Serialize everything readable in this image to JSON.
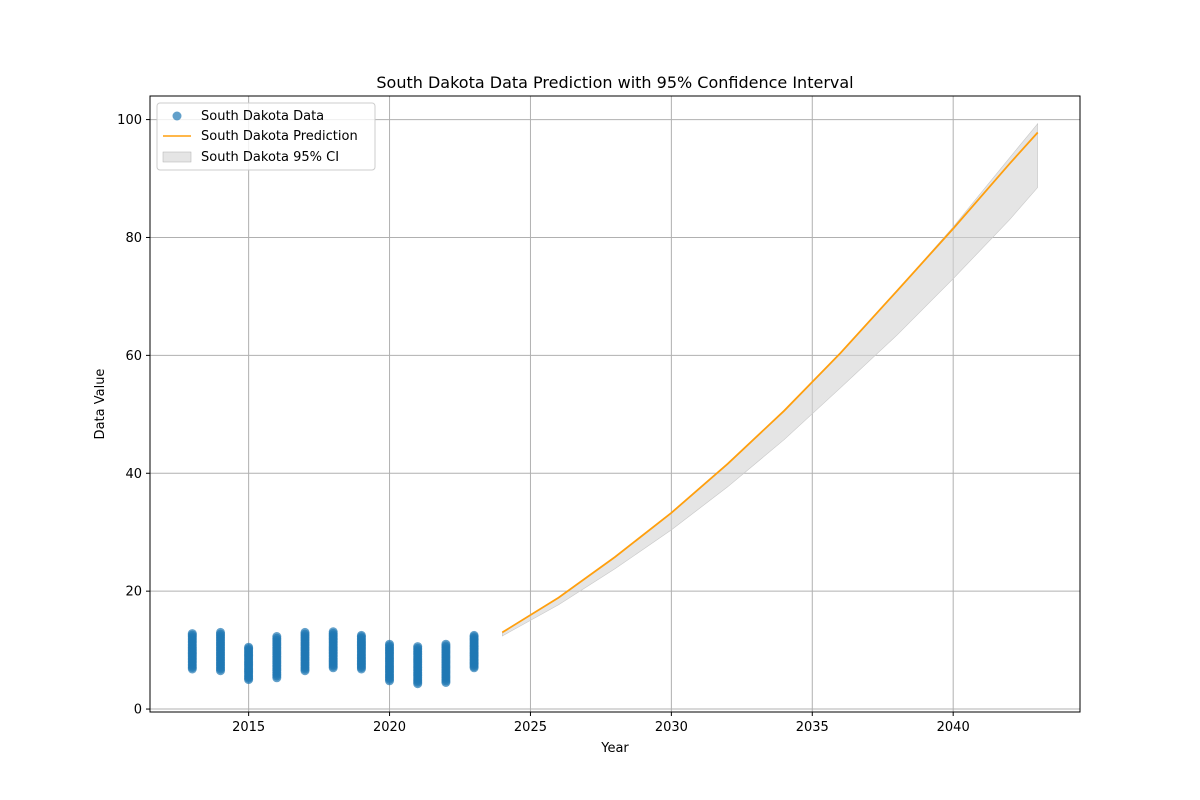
{
  "chart_data": {
    "type": "scatter",
    "title": "South Dakota Data Prediction with 95% Confidence Interval",
    "xlabel": "Year",
    "ylabel": "Data Value",
    "xlim": [
      2011.5,
      2044.5
    ],
    "ylim": [
      -0.5,
      104
    ],
    "xticks": [
      2015,
      2020,
      2025,
      2030,
      2035,
      2040
    ],
    "yticks": [
      0,
      20,
      40,
      60,
      80,
      100
    ],
    "grid": true,
    "legend_position": "top-left",
    "legend": [
      {
        "label": "South Dakota Data",
        "kind": "marker",
        "color": "#1f77b4"
      },
      {
        "label": "South Dakota Prediction",
        "kind": "line",
        "color": "#ff9f0e"
      },
      {
        "label": "South Dakota 95% CI",
        "kind": "area",
        "color": "#d3d3d3"
      }
    ],
    "scatter_series": {
      "name": "South Dakota Data",
      "color": "#1f77b4",
      "groups": [
        {
          "x": 2013,
          "min": 6.8,
          "max": 12.8
        },
        {
          "x": 2014,
          "min": 6.5,
          "max": 13.0
        },
        {
          "x": 2015,
          "min": 5.0,
          "max": 10.5
        },
        {
          "x": 2016,
          "min": 5.3,
          "max": 12.3
        },
        {
          "x": 2017,
          "min": 6.5,
          "max": 13.0
        },
        {
          "x": 2018,
          "min": 7.0,
          "max": 13.1
        },
        {
          "x": 2019,
          "min": 6.8,
          "max": 12.5
        },
        {
          "x": 2020,
          "min": 4.8,
          "max": 11.0
        },
        {
          "x": 2021,
          "min": 4.3,
          "max": 10.6
        },
        {
          "x": 2022,
          "min": 4.5,
          "max": 11.0
        },
        {
          "x": 2023,
          "min": 7.0,
          "max": 12.5
        }
      ]
    },
    "prediction_series": {
      "name": "South Dakota Prediction",
      "color": "#ff9f0e",
      "x": [
        2024,
        2026,
        2028,
        2030,
        2032,
        2034,
        2036,
        2038,
        2040,
        2042,
        2043
      ],
      "y": [
        13.0,
        18.9,
        25.8,
        33.3,
        41.6,
        50.6,
        60.4,
        70.9,
        81.5,
        92.5,
        97.8
      ]
    },
    "confidence_interval": {
      "name": "South Dakota 95% CI",
      "color": "#d3d3d3",
      "x": [
        2024,
        2026,
        2028,
        2030,
        2032,
        2034,
        2036,
        2038,
        2040,
        2042,
        2043
      ],
      "lower": [
        12.4,
        17.7,
        23.8,
        30.4,
        37.7,
        45.7,
        54.5,
        63.4,
        73.0,
        83.0,
        88.5
      ],
      "upper": [
        13.0,
        18.9,
        25.8,
        33.3,
        41.6,
        50.6,
        60.4,
        70.9,
        81.8,
        93.5,
        99.3
      ]
    }
  }
}
